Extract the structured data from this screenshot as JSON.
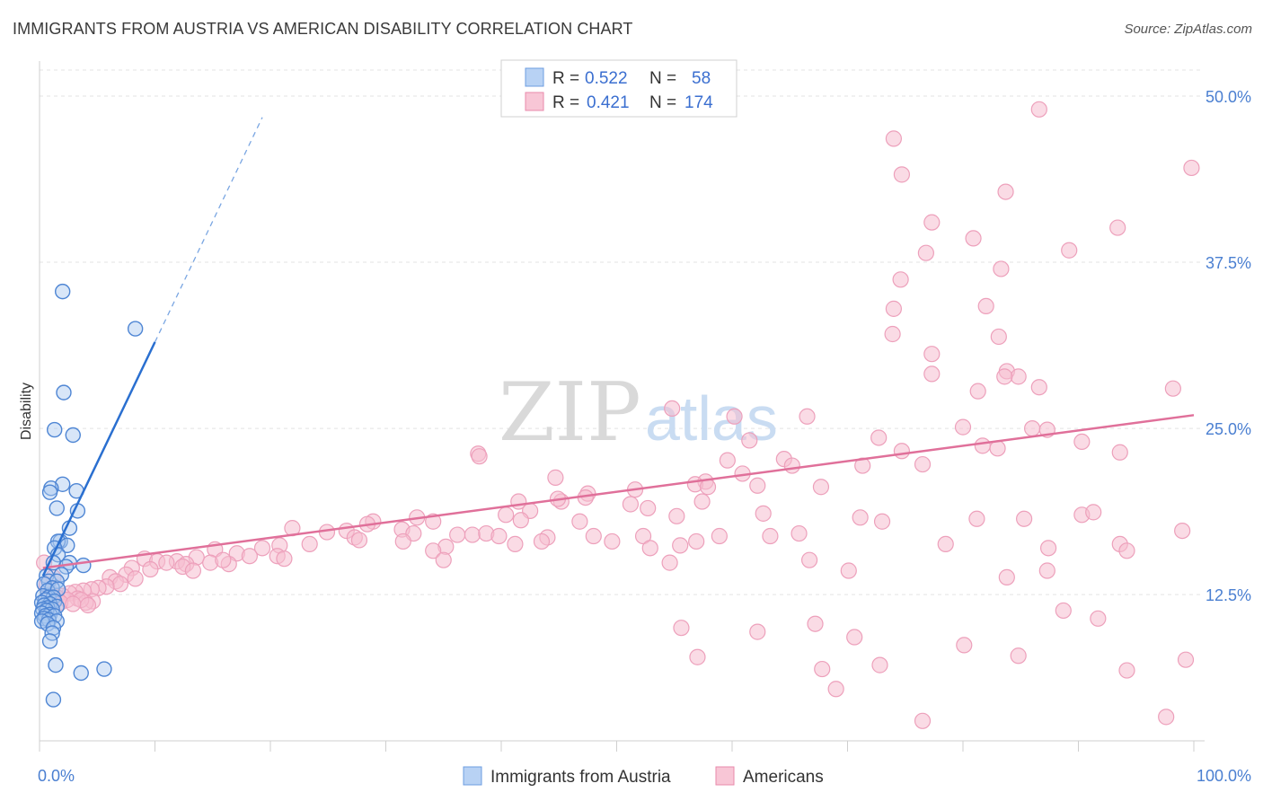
{
  "title": "IMMIGRANTS FROM AUSTRIA VS AMERICAN DISABILITY CORRELATION CHART",
  "source": "Source: ZipAtlas.com",
  "watermark": {
    "zip": "ZIP",
    "atlas": "atlas"
  },
  "colors": {
    "blue": "#4a86d8",
    "blue_fill": "#a9c8f0",
    "blue_line": "#2a6fd0",
    "pink": "#e87aa2",
    "pink_fill": "#f6bdd0",
    "pink_line": "#e0709a",
    "axis_text": "#4a7fd1"
  },
  "chart_data": {
    "type": "scatter",
    "ylabel": "Disability",
    "xlabel": "",
    "xlim": [
      0,
      100
    ],
    "ylim": [
      1.5,
      52.5
    ],
    "x_tick_labels": [
      {
        "value": 0,
        "label": "0.0%"
      },
      {
        "value": 100,
        "label": "100.0%"
      }
    ],
    "y_ticks": [
      {
        "value": 12.5,
        "label": "12.5%"
      },
      {
        "value": 25.0,
        "label": "25.0%"
      },
      {
        "value": 37.5,
        "label": "37.5%"
      },
      {
        "value": 50.0,
        "label": "50.0%"
      }
    ],
    "grid": true,
    "legend": {
      "placement": "top-center",
      "rows": [
        {
          "r_label": "R =",
          "r_value": "0.522",
          "n_label": "N =",
          "n_value": "58"
        },
        {
          "r_label": "R =",
          "r_value": "0.421",
          "n_label": "N =",
          "n_value": "174"
        }
      ]
    },
    "series": [
      {
        "name": "Immigrants from Austria",
        "color": "#4a86d8",
        "trend": {
          "x": [
            0.3,
            10.0
          ],
          "y": [
            13.9,
            31.5
          ],
          "dashed_to": [
            19.3,
            48.4
          ]
        },
        "points": [
          [
            2.0,
            35.3
          ],
          [
            8.3,
            32.5
          ],
          [
            2.1,
            27.7
          ],
          [
            1.3,
            24.9
          ],
          [
            2.9,
            24.5
          ],
          [
            2.0,
            20.8
          ],
          [
            1.0,
            20.5
          ],
          [
            3.2,
            20.3
          ],
          [
            0.9,
            20.2
          ],
          [
            1.5,
            19.0
          ],
          [
            3.3,
            18.8
          ],
          [
            2.6,
            17.5
          ],
          [
            1.8,
            16.5
          ],
          [
            1.6,
            16.5
          ],
          [
            2.4,
            16.2
          ],
          [
            1.3,
            16.0
          ],
          [
            1.6,
            15.5
          ],
          [
            2.6,
            14.9
          ],
          [
            1.2,
            14.9
          ],
          [
            2.3,
            14.6
          ],
          [
            3.8,
            14.7
          ],
          [
            1.9,
            14.0
          ],
          [
            0.6,
            13.9
          ],
          [
            0.8,
            13.5
          ],
          [
            1.5,
            13.5
          ],
          [
            0.4,
            13.3
          ],
          [
            1.1,
            13.0
          ],
          [
            0.7,
            12.8
          ],
          [
            1.6,
            12.9
          ],
          [
            0.3,
            12.4
          ],
          [
            0.8,
            12.3
          ],
          [
            1.2,
            12.3
          ],
          [
            0.5,
            12.1
          ],
          [
            1.3,
            12.0
          ],
          [
            0.2,
            11.9
          ],
          [
            0.9,
            11.8
          ],
          [
            0.4,
            11.7
          ],
          [
            1.5,
            11.6
          ],
          [
            0.7,
            11.5
          ],
          [
            0.3,
            11.4
          ],
          [
            1.1,
            11.4
          ],
          [
            0.6,
            11.3
          ],
          [
            0.2,
            11.1
          ],
          [
            0.9,
            11.0
          ],
          [
            0.5,
            10.9
          ],
          [
            1.3,
            10.9
          ],
          [
            0.4,
            10.7
          ],
          [
            0.8,
            10.6
          ],
          [
            0.2,
            10.5
          ],
          [
            1.5,
            10.5
          ],
          [
            0.7,
            10.3
          ],
          [
            1.2,
            10.0
          ],
          [
            1.1,
            9.6
          ],
          [
            0.9,
            9.0
          ],
          [
            1.4,
            7.2
          ],
          [
            3.6,
            6.6
          ],
          [
            5.6,
            6.9
          ],
          [
            1.2,
            4.6
          ]
        ]
      },
      {
        "name": "Americans",
        "color": "#e87aa2",
        "trend": {
          "x": [
            0.3,
            100.0
          ],
          "y": [
            14.5,
            26.0
          ]
        },
        "points": [
          [
            86.6,
            49.0
          ],
          [
            74.0,
            46.8
          ],
          [
            99.8,
            44.6
          ],
          [
            74.7,
            44.1
          ],
          [
            83.7,
            42.8
          ],
          [
            77.3,
            40.5
          ],
          [
            93.4,
            40.1
          ],
          [
            80.9,
            39.3
          ],
          [
            89.2,
            38.4
          ],
          [
            76.8,
            38.2
          ],
          [
            83.3,
            37.0
          ],
          [
            74.6,
            36.2
          ],
          [
            82.0,
            34.2
          ],
          [
            74.0,
            34.0
          ],
          [
            73.9,
            32.1
          ],
          [
            83.1,
            31.9
          ],
          [
            77.3,
            30.6
          ],
          [
            83.8,
            29.3
          ],
          [
            84.8,
            28.9
          ],
          [
            81.3,
            27.8
          ],
          [
            83.6,
            28.9
          ],
          [
            86.6,
            28.1
          ],
          [
            77.3,
            29.1
          ],
          [
            98.2,
            28.0
          ],
          [
            54.8,
            26.5
          ],
          [
            60.2,
            25.9
          ],
          [
            66.5,
            25.9
          ],
          [
            80.0,
            25.1
          ],
          [
            86.0,
            25.0
          ],
          [
            87.3,
            24.9
          ],
          [
            72.7,
            24.3
          ],
          [
            90.3,
            24.0
          ],
          [
            61.5,
            24.1
          ],
          [
            81.7,
            23.7
          ],
          [
            93.6,
            23.2
          ],
          [
            83.0,
            23.5
          ],
          [
            74.7,
            23.3
          ],
          [
            38.0,
            23.1
          ],
          [
            38.1,
            22.9
          ],
          [
            64.5,
            22.7
          ],
          [
            59.6,
            22.6
          ],
          [
            65.2,
            22.2
          ],
          [
            71.3,
            22.2
          ],
          [
            76.5,
            22.3
          ],
          [
            60.9,
            21.6
          ],
          [
            44.7,
            21.3
          ],
          [
            57.7,
            21.0
          ],
          [
            56.8,
            20.8
          ],
          [
            62.2,
            20.7
          ],
          [
            57.9,
            20.6
          ],
          [
            51.6,
            20.4
          ],
          [
            67.7,
            20.6
          ],
          [
            47.5,
            20.1
          ],
          [
            47.3,
            19.8
          ],
          [
            45.2,
            19.5
          ],
          [
            44.9,
            19.7
          ],
          [
            41.5,
            19.5
          ],
          [
            57.4,
            19.5
          ],
          [
            51.2,
            19.3
          ],
          [
            52.7,
            19.0
          ],
          [
            40.4,
            18.5
          ],
          [
            42.5,
            18.8
          ],
          [
            55.2,
            18.4
          ],
          [
            62.7,
            18.6
          ],
          [
            46.8,
            18.0
          ],
          [
            71.1,
            18.3
          ],
          [
            81.2,
            18.2
          ],
          [
            73.0,
            18.0
          ],
          [
            85.3,
            18.2
          ],
          [
            90.3,
            18.5
          ],
          [
            41.7,
            18.1
          ],
          [
            32.7,
            18.3
          ],
          [
            34.1,
            18.0
          ],
          [
            28.9,
            18.0
          ],
          [
            28.4,
            17.8
          ],
          [
            21.9,
            17.5
          ],
          [
            26.6,
            17.3
          ],
          [
            24.9,
            17.2
          ],
          [
            27.3,
            16.8
          ],
          [
            31.4,
            17.4
          ],
          [
            32.4,
            17.1
          ],
          [
            36.2,
            17.0
          ],
          [
            37.5,
            17.0
          ],
          [
            38.7,
            17.1
          ],
          [
            39.8,
            16.9
          ],
          [
            44.0,
            16.8
          ],
          [
            43.5,
            16.5
          ],
          [
            41.2,
            16.3
          ],
          [
            48.0,
            16.9
          ],
          [
            49.6,
            16.5
          ],
          [
            63.3,
            16.9
          ],
          [
            65.8,
            17.1
          ],
          [
            52.3,
            16.9
          ],
          [
            58.9,
            16.9
          ],
          [
            56.9,
            16.5
          ],
          [
            55.5,
            16.2
          ],
          [
            52.9,
            16.0
          ],
          [
            35.2,
            16.1
          ],
          [
            34.1,
            15.8
          ],
          [
            31.5,
            16.5
          ],
          [
            27.7,
            16.6
          ],
          [
            23.4,
            16.3
          ],
          [
            20.8,
            16.2
          ],
          [
            19.3,
            16.0
          ],
          [
            15.2,
            15.9
          ],
          [
            17.1,
            15.6
          ],
          [
            18.2,
            15.4
          ],
          [
            20.6,
            15.4
          ],
          [
            21.2,
            15.2
          ],
          [
            13.6,
            15.3
          ],
          [
            11.9,
            15.0
          ],
          [
            12.7,
            14.8
          ],
          [
            14.8,
            14.9
          ],
          [
            16.4,
            14.8
          ],
          [
            15.9,
            15.1
          ],
          [
            9.1,
            15.2
          ],
          [
            10.2,
            15.0
          ],
          [
            11.0,
            14.9
          ],
          [
            12.4,
            14.6
          ],
          [
            13.3,
            14.3
          ],
          [
            8.0,
            14.5
          ],
          [
            9.6,
            14.4
          ],
          [
            7.5,
            14.0
          ],
          [
            8.3,
            13.7
          ],
          [
            6.1,
            13.8
          ],
          [
            6.6,
            13.5
          ],
          [
            7.0,
            13.3
          ],
          [
            5.8,
            13.1
          ],
          [
            5.1,
            13.0
          ],
          [
            4.5,
            12.9
          ],
          [
            3.8,
            12.8
          ],
          [
            3.1,
            12.7
          ],
          [
            2.6,
            12.6
          ],
          [
            2.0,
            12.4
          ],
          [
            1.5,
            12.3
          ],
          [
            3.3,
            12.2
          ],
          [
            2.4,
            12.1
          ],
          [
            4.6,
            12.0
          ],
          [
            4.0,
            11.9
          ],
          [
            3.6,
            12.1
          ],
          [
            1.8,
            11.9
          ],
          [
            2.9,
            11.8
          ],
          [
            4.2,
            11.7
          ],
          [
            1.2,
            13.8
          ],
          [
            0.4,
            14.9
          ],
          [
            0.6,
            13.2
          ],
          [
            1.1,
            12.6
          ],
          [
            54.6,
            14.9
          ],
          [
            87.4,
            16.0
          ],
          [
            93.6,
            16.3
          ],
          [
            87.3,
            14.3
          ],
          [
            78.5,
            16.3
          ],
          [
            91.3,
            18.7
          ],
          [
            94.2,
            15.8
          ],
          [
            99.0,
            17.3
          ],
          [
            70.1,
            14.3
          ],
          [
            83.8,
            13.8
          ],
          [
            66.7,
            15.1
          ],
          [
            35.0,
            15.1
          ],
          [
            67.2,
            10.3
          ],
          [
            88.7,
            11.3
          ],
          [
            70.6,
            9.3
          ],
          [
            91.7,
            10.7
          ],
          [
            55.6,
            10.0
          ],
          [
            72.8,
            7.2
          ],
          [
            80.1,
            8.7
          ],
          [
            84.8,
            7.9
          ],
          [
            94.2,
            6.8
          ],
          [
            76.5,
            3.0
          ],
          [
            97.6,
            3.3
          ],
          [
            62.2,
            9.7
          ],
          [
            57.0,
            7.8
          ],
          [
            69.0,
            5.4
          ],
          [
            67.8,
            6.9
          ],
          [
            99.3,
            7.6
          ]
        ]
      }
    ]
  },
  "bottom_legend": [
    {
      "label": "Immigrants from Austria"
    },
    {
      "label": "Americans"
    }
  ]
}
